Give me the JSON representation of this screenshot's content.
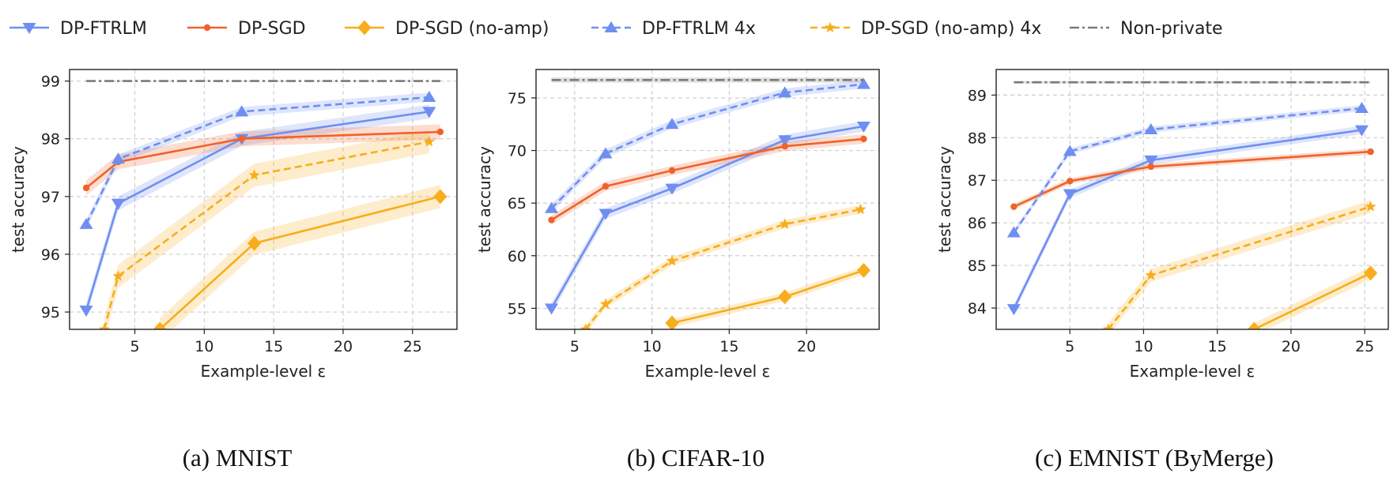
{
  "legend": [
    {
      "label": "DP-FTRLM",
      "color": "#6f8ff0",
      "dash": "solid",
      "marker": "tri-down"
    },
    {
      "label": "DP-SGD",
      "color": "#f0622a",
      "dash": "solid",
      "marker": "circle"
    },
    {
      "label": "DP-SGD (no-amp)",
      "color": "#f8ad1c",
      "dash": "solid",
      "marker": "diamond"
    },
    {
      "label": "DP-FTRLM 4x",
      "color": "#6f8ff0",
      "dash": "dashed",
      "marker": "tri-up"
    },
    {
      "label": "DP-SGD (no-amp) 4x",
      "color": "#f8ad1c",
      "dash": "dashed",
      "marker": "star"
    },
    {
      "label": "Non-private",
      "color": "#7a7a7a",
      "dash": "dashdot",
      "marker": "none"
    }
  ],
  "chart_data": [
    {
      "type": "line",
      "caption": "(a) MNIST",
      "xlabel": "Example-level ε",
      "ylabel": "test accuracy",
      "xlim": [
        0.3,
        28.2
      ],
      "ylim": [
        94.7,
        99.2
      ],
      "xticks": [
        5,
        10,
        15,
        20,
        25
      ],
      "yticks": [
        95,
        96,
        97,
        98,
        99
      ],
      "grid": true,
      "series": [
        {
          "name": "DP-FTRLM",
          "x": [
            1.5,
            3.8,
            12.7,
            26.2
          ],
          "y": [
            95.03,
            96.88,
            98.0,
            98.47
          ],
          "band": 0.12
        },
        {
          "name": "DP-SGD",
          "x": [
            1.5,
            3.8,
            12.7,
            27.0
          ],
          "y": [
            97.15,
            97.6,
            98.0,
            98.12
          ],
          "band": 0.13
        },
        {
          "name": "DP-SGD (no-amp)",
          "x": [
            6.8,
            13.6,
            27.0
          ],
          "y": [
            94.7,
            96.19,
            97.0
          ],
          "band": 0.2
        },
        {
          "name": "DP-FTRLM 4x",
          "x": [
            1.5,
            3.8,
            12.7,
            26.2
          ],
          "y": [
            96.52,
            97.65,
            98.47,
            98.72
          ],
          "band": 0.08
        },
        {
          "name": "DP-SGD (no-amp) 4x",
          "x": [
            2.8,
            3.8,
            13.6,
            26.2
          ],
          "y": [
            94.7,
            95.62,
            97.37,
            97.95
          ],
          "band": 0.2
        },
        {
          "name": "Non-private",
          "x": [
            1.5,
            27.0
          ],
          "y": [
            99.0,
            99.0
          ],
          "band": 0
        }
      ]
    },
    {
      "type": "line",
      "caption": "(b) CIFAR-10",
      "xlabel": "Example-level ε",
      "ylabel": "test accuracy",
      "xlim": [
        2.5,
        24.7
      ],
      "ylim": [
        53.0,
        77.7
      ],
      "xticks": [
        5,
        10,
        15,
        20
      ],
      "yticks": [
        55,
        60,
        65,
        70,
        75
      ],
      "grid": true,
      "series": [
        {
          "name": "DP-FTRLM",
          "x": [
            3.5,
            7.0,
            11.3,
            18.6,
            23.7
          ],
          "y": [
            55.0,
            64.0,
            66.4,
            71.0,
            72.3
          ],
          "band": 0.5
        },
        {
          "name": "DP-SGD",
          "x": [
            3.5,
            7.0,
            11.3,
            18.6,
            23.7
          ],
          "y": [
            63.4,
            66.6,
            68.1,
            70.4,
            71.1
          ],
          "band": 0.45
        },
        {
          "name": "DP-SGD (no-amp)",
          "x": [
            11.3,
            18.6,
            23.7
          ],
          "y": [
            53.6,
            56.1,
            58.6
          ],
          "band": 0.4
        },
        {
          "name": "DP-FTRLM 4x",
          "x": [
            3.5,
            7.0,
            11.3,
            18.6,
            23.7
          ],
          "y": [
            64.5,
            69.7,
            72.5,
            75.5,
            76.3
          ],
          "band": 0.4
        },
        {
          "name": "DP-SGD (no-amp) 4x",
          "x": [
            5.7,
            7.0,
            11.3,
            18.6,
            23.5
          ],
          "y": [
            53.0,
            55.4,
            59.5,
            63.0,
            64.4
          ],
          "band": 0.4
        },
        {
          "name": "Non-private",
          "x": [
            3.5,
            23.7
          ],
          "y": [
            76.7,
            76.7
          ],
          "band": 0.25
        }
      ]
    },
    {
      "type": "line",
      "caption": "(c) EMNIST (ByMerge)",
      "xlabel": "Example-level ε",
      "ylabel": "test accuracy",
      "xlim": [
        0.0,
        26.6
      ],
      "ylim": [
        83.5,
        89.6
      ],
      "xticks": [
        5,
        10,
        15,
        20,
        25
      ],
      "yticks": [
        84,
        85,
        86,
        87,
        88,
        89
      ],
      "grid": true,
      "series": [
        {
          "name": "DP-FTRLM",
          "x": [
            1.2,
            5.0,
            10.5,
            24.8
          ],
          "y": [
            83.98,
            86.68,
            87.47,
            88.18
          ],
          "band": 0.1
        },
        {
          "name": "DP-SGD",
          "x": [
            1.2,
            5.0,
            10.5,
            25.4
          ],
          "y": [
            86.38,
            86.98,
            87.32,
            87.67
          ],
          "band": 0.07
        },
        {
          "name": "DP-SGD (no-amp)",
          "x": [
            17.5,
            25.4
          ],
          "y": [
            83.5,
            84.82
          ],
          "band": 0.15
        },
        {
          "name": "DP-FTRLM 4x",
          "x": [
            1.2,
            5.0,
            10.5,
            24.8
          ],
          "y": [
            85.77,
            87.68,
            88.19,
            88.69
          ],
          "band": 0.07
        },
        {
          "name": "DP-SGD (no-amp) 4x",
          "x": [
            7.6,
            10.5,
            25.4
          ],
          "y": [
            83.5,
            84.77,
            86.38
          ],
          "band": 0.15
        },
        {
          "name": "Non-private",
          "x": [
            1.2,
            25.4
          ],
          "y": [
            89.3,
            89.3
          ],
          "band": 0.03
        }
      ]
    }
  ]
}
